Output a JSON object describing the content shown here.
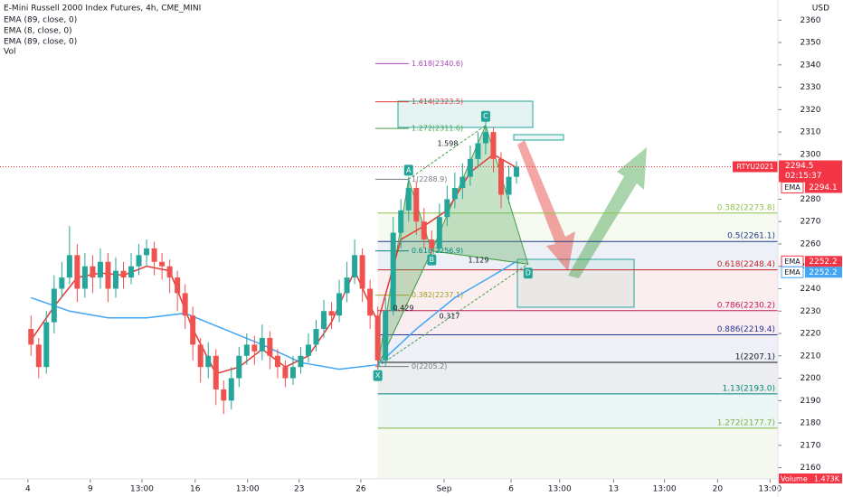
{
  "chart_data": {
    "type": "candlestick",
    "title": "E-Mini Russell 2000 Index Futures, 4h, CME_MINI",
    "indicators": [
      "EMA (89, close, 0)",
      "EMA (8, close, 0)",
      "EMA (89, close, 0)",
      "Vol"
    ],
    "currency": "USD",
    "ylim": [
      2155,
      2369
    ],
    "yticks": [
      2160,
      2170,
      2180,
      2190,
      2200,
      2210,
      2220,
      2230,
      2240,
      2250,
      2260,
      2270,
      2280,
      2290,
      2300,
      2310,
      2320,
      2330,
      2340,
      2350,
      2360
    ],
    "xlim": [
      -0.5,
      97.5
    ],
    "xticks": [
      {
        "value": -0.4,
        "label": "4"
      },
      {
        "value": 7.7,
        "label": "9"
      },
      {
        "value": 14.4,
        "label": "13:00"
      },
      {
        "value": 21.3,
        "label": "16"
      },
      {
        "value": 28.1,
        "label": "13:00"
      },
      {
        "value": 34.8,
        "label": "23"
      },
      {
        "value": 42.8,
        "label": "26"
      },
      {
        "value": 53.6,
        "label": "Sep"
      },
      {
        "value": 62.3,
        "label": "6"
      },
      {
        "value": 68.6,
        "label": "13:00"
      },
      {
        "value": 75.6,
        "label": "13"
      },
      {
        "value": 82.2,
        "label": "13:00"
      },
      {
        "value": 89.1,
        "label": "20"
      },
      {
        "value": 95.9,
        "label": "13:00"
      }
    ],
    "up_color": "#26a69a",
    "down_color": "#ef5350",
    "candles": [
      [
        2222,
        2228,
        2210,
        2215
      ],
      [
        2215,
        2218,
        2200,
        2205
      ],
      [
        2205,
        2230,
        2202,
        2225
      ],
      [
        2225,
        2246,
        2220,
        2240
      ],
      [
        2240,
        2252,
        2236,
        2245
      ],
      [
        2245,
        2268,
        2242,
        2255
      ],
      [
        2255,
        2260,
        2234,
        2240
      ],
      [
        2240,
        2256,
        2236,
        2250
      ],
      [
        2250,
        2255,
        2238,
        2245
      ],
      [
        2245,
        2258,
        2240,
        2252
      ],
      [
        2252,
        2256,
        2234,
        2240
      ],
      [
        2240,
        2254,
        2236,
        2248
      ],
      [
        2248,
        2252,
        2240,
        2245
      ],
      [
        2245,
        2256,
        2242,
        2250
      ],
      [
        2250,
        2260,
        2246,
        2255
      ],
      [
        2255,
        2262,
        2250,
        2258
      ],
      [
        2258,
        2261,
        2246,
        2252
      ],
      [
        2252,
        2256,
        2244,
        2250
      ],
      [
        2250,
        2253,
        2238,
        2245
      ],
      [
        2245,
        2248,
        2230,
        2238
      ],
      [
        2238,
        2242,
        2222,
        2228
      ],
      [
        2228,
        2232,
        2208,
        2215
      ],
      [
        2215,
        2218,
        2198,
        2205
      ],
      [
        2205,
        2216,
        2200,
        2210
      ],
      [
        2210,
        2213,
        2188,
        2195
      ],
      [
        2195,
        2199,
        2184,
        2190
      ],
      [
        2190,
        2205,
        2186,
        2200
      ],
      [
        2200,
        2214,
        2196,
        2210
      ],
      [
        2210,
        2220,
        2206,
        2215
      ],
      [
        2215,
        2219,
        2206,
        2212
      ],
      [
        2212,
        2224,
        2208,
        2218
      ],
      [
        2218,
        2221,
        2204,
        2210
      ],
      [
        2210,
        2213,
        2200,
        2205
      ],
      [
        2205,
        2208,
        2196,
        2200
      ],
      [
        2200,
        2210,
        2197,
        2205
      ],
      [
        2205,
        2214,
        2202,
        2210
      ],
      [
        2210,
        2220,
        2207,
        2215
      ],
      [
        2215,
        2226,
        2212,
        2222
      ],
      [
        2222,
        2235,
        2218,
        2230
      ],
      [
        2230,
        2234,
        2222,
        2228
      ],
      [
        2228,
        2244,
        2225,
        2238
      ],
      [
        2238,
        2252,
        2234,
        2245
      ],
      [
        2245,
        2262,
        2242,
        2255
      ],
      [
        2255,
        2258,
        2234,
        2240
      ],
      [
        2240,
        2244,
        2222,
        2228
      ],
      [
        2228,
        2232,
        2204,
        2208
      ],
      [
        2208,
        2236,
        2205,
        2230
      ],
      [
        2230,
        2272,
        2228,
        2265
      ],
      [
        2265,
        2280,
        2258,
        2275
      ],
      [
        2275,
        2290,
        2270,
        2285
      ],
      [
        2285,
        2288,
        2264,
        2270
      ],
      [
        2270,
        2276,
        2258,
        2262
      ],
      [
        2262,
        2266,
        2255,
        2258
      ],
      [
        2258,
        2278,
        2256,
        2272
      ],
      [
        2272,
        2286,
        2268,
        2280
      ],
      [
        2280,
        2292,
        2276,
        2285
      ],
      [
        2285,
        2296,
        2280,
        2290
      ],
      [
        2290,
        2304,
        2286,
        2298
      ],
      [
        2298,
        2310,
        2294,
        2305
      ],
      [
        2305,
        2315,
        2300,
        2310
      ],
      [
        2310,
        2312,
        2292,
        2298
      ],
      [
        2298,
        2301,
        2276,
        2282
      ],
      [
        2282,
        2295,
        2278,
        2290
      ],
      [
        2290,
        2297,
        2287,
        2294.5
      ]
    ],
    "ema_slow": {
      "color": "#42a5f5",
      "x": [
        0,
        5,
        10,
        15,
        20,
        25,
        30,
        35,
        40,
        45,
        50,
        55,
        60,
        63
      ],
      "values": [
        2236,
        2230,
        2227,
        2227,
        2229,
        2222,
        2215,
        2207,
        2204,
        2206,
        2222,
        2236,
        2246,
        2252.2
      ]
    },
    "ema_fast": {
      "color": "#e53935",
      "x": [
        0,
        3,
        6,
        9,
        12,
        15,
        18,
        21,
        24,
        27,
        30,
        33,
        36,
        39,
        42,
        45,
        48,
        51,
        54,
        57,
        60,
        63
      ],
      "values": [
        2217,
        2232,
        2245,
        2247,
        2246,
        2250,
        2248,
        2222,
        2202,
        2205,
        2213,
        2205,
        2210,
        2225,
        2248,
        2225,
        2262,
        2268,
        2275,
        2292,
        2300,
        2294.1
      ]
    },
    "fib": {
      "start": 45,
      "levels": [
        {
          "value": 2273.8,
          "label": "0.382(2273.8)",
          "color": "#8bc34a"
        },
        {
          "value": 2261.1,
          "label": "0.5(2261.1)",
          "color": "#1e3a8a"
        },
        {
          "value": 2248.4,
          "label": "0.618(2248.4)",
          "color": "#c62828"
        },
        {
          "value": 2230.2,
          "label": "0.786(2230.2)",
          "color": "#c2185b"
        },
        {
          "value": 2219.4,
          "label": "0.886(2219.4)",
          "color": "#283593"
        },
        {
          "value": 2207.1,
          "label": "1(2207.1)",
          "color": "#131722"
        },
        {
          "value": 2193.0,
          "label": "1.13(2193.0)",
          "color": "#00897b"
        },
        {
          "value": 2177.7,
          "label": "1.272(2177.7)",
          "color": "#7cb342"
        }
      ]
    },
    "pattern_levels": [
      {
        "value": 2340.6,
        "label": "1.618(2340.6)",
        "color": "#ab47bc"
      },
      {
        "value": 2323.5,
        "label": "1.414(2323.5)",
        "color": "#e53935"
      },
      {
        "value": 2311.6,
        "label": "1.272(2311.6)",
        "color": "#43a047"
      },
      {
        "value": 2288.9,
        "label": "1(2288.9)",
        "color": "#787b86"
      },
      {
        "value": 2256.9,
        "label": "0.618(2256.9)",
        "color": "#00897b"
      },
      {
        "value": 2237.1,
        "label": "0.382(2237.1)",
        "color": "#9e9d24"
      },
      {
        "value": 2205.2,
        "label": "0(2205.2)",
        "color": "#787b86"
      }
    ],
    "pattern": [
      {
        "label": "X",
        "x": 45,
        "value": 2205.2
      },
      {
        "label": "A",
        "x": 49,
        "value": 2288.9
      },
      {
        "label": "B",
        "x": 52,
        "value": 2256.9
      },
      {
        "label": "C",
        "x": 59,
        "value": 2313
      },
      {
        "label": "D",
        "x": 64.5,
        "value": 2251
      }
    ],
    "ratios": [
      "1.598",
      "1.129",
      "0.429",
      "0.317"
    ],
    "last_price": {
      "value": 2294.5,
      "countdown": "02:15:37",
      "symbol": "RTYU2021",
      "color": "#f23645"
    },
    "ema_tags": [
      {
        "name": "EMA",
        "value": 2294.1,
        "color": "#f23645"
      },
      {
        "name": "EMA",
        "value": 2252.2,
        "color": "#f23645"
      },
      {
        "name": "EMA",
        "value": 2252.2,
        "color": "#42a5f5"
      }
    ],
    "volume_tag": {
      "name": "Volume",
      "value": "1.473K"
    }
  }
}
